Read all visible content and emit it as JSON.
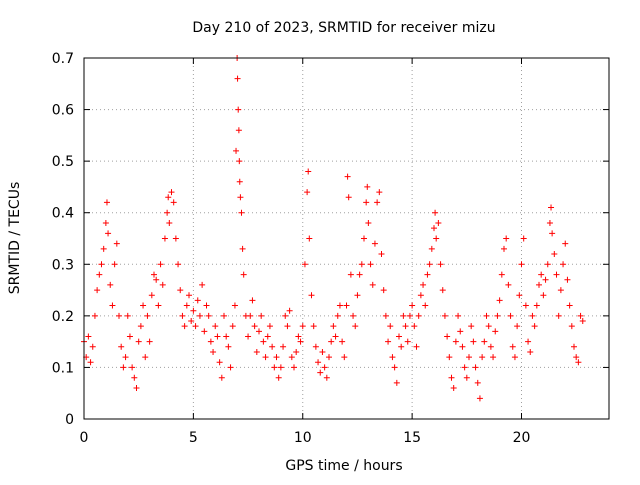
{
  "chart_data": {
    "type": "scatter",
    "title": "Day 210 of 2023, SRMTID for receiver mizu",
    "xlabel": "GPS time / hours",
    "ylabel": "SRMTID / TECUs",
    "xlim": [
      0,
      24
    ],
    "ylim": [
      0,
      0.7
    ],
    "xticks": [
      0,
      5,
      10,
      15,
      20
    ],
    "xtick_labels": [
      "0",
      "5",
      "10",
      "15",
      "20"
    ],
    "yticks": [
      0,
      0.1,
      0.2,
      0.3,
      0.4,
      0.5,
      0.6,
      0.7
    ],
    "ytick_labels": [
      "0",
      "0.1",
      "0.2",
      "0.3",
      "0.4",
      "0.5",
      "0.6",
      "0.7"
    ],
    "grid": true,
    "marker": "plus",
    "series": [
      {
        "name": "SRMTID",
        "color": "#ff0000",
        "points": [
          [
            0.0,
            0.15
          ],
          [
            0.1,
            0.12
          ],
          [
            0.2,
            0.16
          ],
          [
            0.3,
            0.11
          ],
          [
            0.4,
            0.14
          ],
          [
            0.5,
            0.2
          ],
          [
            0.6,
            0.25
          ],
          [
            0.7,
            0.28
          ],
          [
            0.8,
            0.3
          ],
          [
            0.9,
            0.33
          ],
          [
            1.0,
            0.38
          ],
          [
            1.05,
            0.42
          ],
          [
            1.1,
            0.36
          ],
          [
            1.2,
            0.26
          ],
          [
            1.3,
            0.22
          ],
          [
            1.4,
            0.3
          ],
          [
            1.5,
            0.34
          ],
          [
            1.6,
            0.2
          ],
          [
            1.7,
            0.14
          ],
          [
            1.8,
            0.1
          ],
          [
            1.9,
            0.12
          ],
          [
            2.0,
            0.2
          ],
          [
            2.1,
            0.16
          ],
          [
            2.2,
            0.1
          ],
          [
            2.3,
            0.08
          ],
          [
            2.4,
            0.06
          ],
          [
            2.5,
            0.15
          ],
          [
            2.6,
            0.18
          ],
          [
            2.7,
            0.22
          ],
          [
            2.8,
            0.12
          ],
          [
            2.9,
            0.2
          ],
          [
            3.0,
            0.15
          ],
          [
            3.1,
            0.24
          ],
          [
            3.2,
            0.28
          ],
          [
            3.3,
            0.27
          ],
          [
            3.4,
            0.22
          ],
          [
            3.5,
            0.3
          ],
          [
            3.6,
            0.26
          ],
          [
            3.7,
            0.35
          ],
          [
            3.8,
            0.4
          ],
          [
            3.85,
            0.43
          ],
          [
            3.9,
            0.38
          ],
          [
            4.0,
            0.44
          ],
          [
            4.1,
            0.42
          ],
          [
            4.2,
            0.35
          ],
          [
            4.3,
            0.3
          ],
          [
            4.4,
            0.25
          ],
          [
            4.5,
            0.2
          ],
          [
            4.6,
            0.18
          ],
          [
            4.7,
            0.22
          ],
          [
            4.8,
            0.24
          ],
          [
            4.9,
            0.19
          ],
          [
            5.0,
            0.21
          ],
          [
            5.1,
            0.18
          ],
          [
            5.2,
            0.23
          ],
          [
            5.3,
            0.2
          ],
          [
            5.4,
            0.26
          ],
          [
            5.5,
            0.17
          ],
          [
            5.6,
            0.22
          ],
          [
            5.7,
            0.2
          ],
          [
            5.8,
            0.15
          ],
          [
            5.9,
            0.13
          ],
          [
            6.0,
            0.18
          ],
          [
            6.1,
            0.16
          ],
          [
            6.2,
            0.11
          ],
          [
            6.3,
            0.08
          ],
          [
            6.4,
            0.2
          ],
          [
            6.5,
            0.16
          ],
          [
            6.6,
            0.14
          ],
          [
            6.7,
            0.1
          ],
          [
            6.8,
            0.18
          ],
          [
            6.9,
            0.22
          ],
          [
            6.95,
            0.52
          ],
          [
            7.0,
            0.7
          ],
          [
            7.02,
            0.66
          ],
          [
            7.05,
            0.6
          ],
          [
            7.08,
            0.56
          ],
          [
            7.1,
            0.5
          ],
          [
            7.12,
            0.46
          ],
          [
            7.15,
            0.43
          ],
          [
            7.2,
            0.4
          ],
          [
            7.25,
            0.33
          ],
          [
            7.3,
            0.28
          ],
          [
            7.4,
            0.2
          ],
          [
            7.5,
            0.16
          ],
          [
            7.6,
            0.2
          ],
          [
            7.7,
            0.23
          ],
          [
            7.8,
            0.18
          ],
          [
            7.9,
            0.13
          ],
          [
            8.0,
            0.17
          ],
          [
            8.1,
            0.2
          ],
          [
            8.2,
            0.15
          ],
          [
            8.3,
            0.12
          ],
          [
            8.4,
            0.16
          ],
          [
            8.5,
            0.18
          ],
          [
            8.6,
            0.14
          ],
          [
            8.7,
            0.1
          ],
          [
            8.8,
            0.12
          ],
          [
            8.9,
            0.08
          ],
          [
            9.0,
            0.1
          ],
          [
            9.1,
            0.14
          ],
          [
            9.2,
            0.2
          ],
          [
            9.3,
            0.18
          ],
          [
            9.4,
            0.21
          ],
          [
            9.5,
            0.12
          ],
          [
            9.6,
            0.1
          ],
          [
            9.7,
            0.13
          ],
          [
            9.8,
            0.16
          ],
          [
            9.9,
            0.15
          ],
          [
            10.0,
            0.18
          ],
          [
            10.1,
            0.3
          ],
          [
            10.2,
            0.44
          ],
          [
            10.25,
            0.48
          ],
          [
            10.3,
            0.35
          ],
          [
            10.4,
            0.24
          ],
          [
            10.5,
            0.18
          ],
          [
            10.6,
            0.14
          ],
          [
            10.7,
            0.11
          ],
          [
            10.8,
            0.09
          ],
          [
            10.9,
            0.13
          ],
          [
            11.0,
            0.1
          ],
          [
            11.1,
            0.08
          ],
          [
            11.2,
            0.12
          ],
          [
            11.3,
            0.15
          ],
          [
            11.4,
            0.18
          ],
          [
            11.5,
            0.16
          ],
          [
            11.6,
            0.2
          ],
          [
            11.7,
            0.22
          ],
          [
            11.8,
            0.15
          ],
          [
            11.9,
            0.12
          ],
          [
            12.0,
            0.22
          ],
          [
            12.05,
            0.47
          ],
          [
            12.1,
            0.43
          ],
          [
            12.2,
            0.28
          ],
          [
            12.3,
            0.2
          ],
          [
            12.4,
            0.18
          ],
          [
            12.5,
            0.24
          ],
          [
            12.6,
            0.28
          ],
          [
            12.7,
            0.3
          ],
          [
            12.8,
            0.35
          ],
          [
            12.9,
            0.42
          ],
          [
            12.95,
            0.45
          ],
          [
            13.0,
            0.38
          ],
          [
            13.1,
            0.3
          ],
          [
            13.2,
            0.26
          ],
          [
            13.3,
            0.34
          ],
          [
            13.4,
            0.42
          ],
          [
            13.5,
            0.44
          ],
          [
            13.6,
            0.32
          ],
          [
            13.7,
            0.25
          ],
          [
            13.8,
            0.2
          ],
          [
            13.9,
            0.15
          ],
          [
            14.0,
            0.18
          ],
          [
            14.1,
            0.12
          ],
          [
            14.2,
            0.1
          ],
          [
            14.3,
            0.07
          ],
          [
            14.4,
            0.16
          ],
          [
            14.5,
            0.14
          ],
          [
            14.6,
            0.2
          ],
          [
            14.7,
            0.18
          ],
          [
            14.8,
            0.15
          ],
          [
            14.9,
            0.2
          ],
          [
            15.0,
            0.22
          ],
          [
            15.1,
            0.18
          ],
          [
            15.2,
            0.14
          ],
          [
            15.3,
            0.2
          ],
          [
            15.4,
            0.24
          ],
          [
            15.5,
            0.26
          ],
          [
            15.6,
            0.22
          ],
          [
            15.7,
            0.28
          ],
          [
            15.8,
            0.3
          ],
          [
            15.9,
            0.33
          ],
          [
            16.0,
            0.37
          ],
          [
            16.05,
            0.4
          ],
          [
            16.1,
            0.35
          ],
          [
            16.2,
            0.38
          ],
          [
            16.3,
            0.3
          ],
          [
            16.4,
            0.25
          ],
          [
            16.5,
            0.2
          ],
          [
            16.6,
            0.16
          ],
          [
            16.7,
            0.12
          ],
          [
            16.8,
            0.08
          ],
          [
            16.9,
            0.06
          ],
          [
            17.0,
            0.15
          ],
          [
            17.1,
            0.2
          ],
          [
            17.2,
            0.17
          ],
          [
            17.3,
            0.14
          ],
          [
            17.4,
            0.1
          ],
          [
            17.5,
            0.08
          ],
          [
            17.6,
            0.12
          ],
          [
            17.7,
            0.18
          ],
          [
            17.8,
            0.15
          ],
          [
            17.9,
            0.1
          ],
          [
            18.0,
            0.07
          ],
          [
            18.1,
            0.04
          ],
          [
            18.2,
            0.12
          ],
          [
            18.3,
            0.15
          ],
          [
            18.4,
            0.2
          ],
          [
            18.5,
            0.18
          ],
          [
            18.6,
            0.14
          ],
          [
            18.7,
            0.12
          ],
          [
            18.8,
            0.17
          ],
          [
            18.9,
            0.2
          ],
          [
            19.0,
            0.23
          ],
          [
            19.1,
            0.28
          ],
          [
            19.2,
            0.33
          ],
          [
            19.3,
            0.35
          ],
          [
            19.4,
            0.26
          ],
          [
            19.5,
            0.2
          ],
          [
            19.6,
            0.14
          ],
          [
            19.7,
            0.12
          ],
          [
            19.8,
            0.18
          ],
          [
            19.9,
            0.24
          ],
          [
            20.0,
            0.3
          ],
          [
            20.1,
            0.35
          ],
          [
            20.2,
            0.22
          ],
          [
            20.3,
            0.15
          ],
          [
            20.4,
            0.13
          ],
          [
            20.5,
            0.2
          ],
          [
            20.6,
            0.18
          ],
          [
            20.7,
            0.22
          ],
          [
            20.8,
            0.26
          ],
          [
            20.9,
            0.28
          ],
          [
            21.0,
            0.24
          ],
          [
            21.1,
            0.27
          ],
          [
            21.2,
            0.3
          ],
          [
            21.3,
            0.38
          ],
          [
            21.35,
            0.41
          ],
          [
            21.4,
            0.36
          ],
          [
            21.5,
            0.32
          ],
          [
            21.6,
            0.28
          ],
          [
            21.7,
            0.2
          ],
          [
            21.8,
            0.25
          ],
          [
            21.9,
            0.3
          ],
          [
            22.0,
            0.34
          ],
          [
            22.1,
            0.27
          ],
          [
            22.2,
            0.22
          ],
          [
            22.3,
            0.18
          ],
          [
            22.4,
            0.14
          ],
          [
            22.5,
            0.12
          ],
          [
            22.6,
            0.11
          ],
          [
            22.7,
            0.2
          ],
          [
            22.8,
            0.19
          ]
        ]
      }
    ]
  }
}
